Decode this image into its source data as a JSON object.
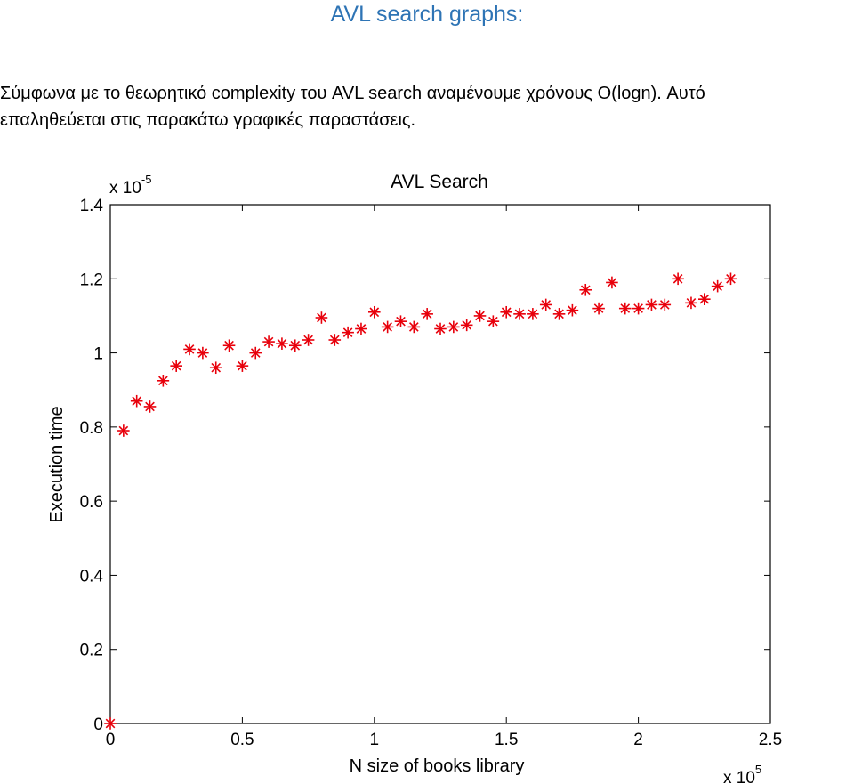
{
  "document": {
    "heading": "AVL search graphs:",
    "paragraph": "Σύμφωνα με το θεωρητικό complexity του AVL search αναμένουμε χρόνους O(logn). Αυτό\nεπαληθεύεται στις παρακάτω γραφικές παραστάσεις."
  },
  "chart_data": {
    "type": "scatter",
    "title": "AVL Search",
    "xlabel": "N size of books library",
    "ylabel": "Execution time",
    "x_exponent_label": "x 10",
    "x_exponent": "5",
    "y_exponent_label": "x 10",
    "y_exponent": "-5",
    "xlim": [
      0,
      2.5
    ],
    "ylim": [
      0,
      1.4
    ],
    "xticks": [
      0,
      0.5,
      1,
      1.5,
      2,
      2.5
    ],
    "xtick_labels": [
      "0",
      "0.5",
      "1",
      "1.5",
      "2",
      "2.5"
    ],
    "yticks": [
      0,
      0.2,
      0.4,
      0.6,
      0.8,
      1,
      1.2,
      1.4
    ],
    "ytick_labels": [
      "0",
      "0.2",
      "0.4",
      "0.6",
      "0.8",
      "1",
      "1.2",
      "1.4"
    ],
    "marker": "asterisk",
    "marker_color": "#e8000b",
    "series": [
      {
        "x": [
          0,
          0.05,
          0.1,
          0.15,
          0.2,
          0.25,
          0.3,
          0.35,
          0.4,
          0.45,
          0.5,
          0.55,
          0.6,
          0.65,
          0.7,
          0.75,
          0.8,
          0.85,
          0.9,
          0.95,
          1.0,
          1.05,
          1.1,
          1.15,
          1.2,
          1.25,
          1.3,
          1.35,
          1.4,
          1.45,
          1.5,
          1.55,
          1.6,
          1.65,
          1.7,
          1.75,
          1.8,
          1.85,
          1.9,
          1.95,
          2.0,
          2.05,
          2.1,
          2.15,
          2.2,
          2.25,
          2.3,
          2.35
        ],
        "y": [
          0,
          0.79,
          0.87,
          0.855,
          0.925,
          0.965,
          1.01,
          1.0,
          0.96,
          1.02,
          0.965,
          1.0,
          1.03,
          1.025,
          1.02,
          1.035,
          1.095,
          1.035,
          1.055,
          1.065,
          1.11,
          1.07,
          1.085,
          1.07,
          1.105,
          1.065,
          1.07,
          1.075,
          1.1,
          1.085,
          1.11,
          1.105,
          1.105,
          1.13,
          1.105,
          1.115,
          1.17,
          1.12,
          1.19,
          1.12,
          1.12,
          1.13,
          1.13,
          1.2,
          1.135,
          1.145,
          1.18,
          1.2
        ]
      }
    ]
  }
}
